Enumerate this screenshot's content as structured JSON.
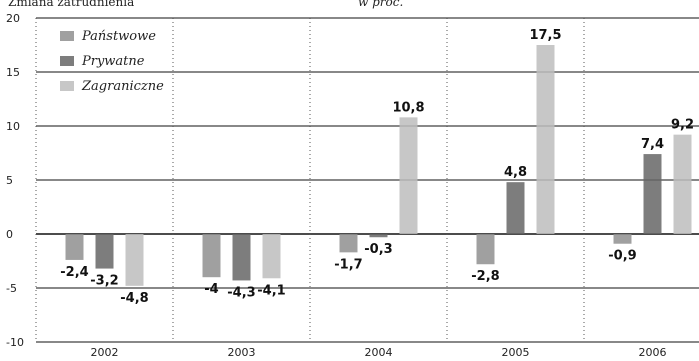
{
  "chart_data": {
    "type": "bar",
    "title": "Zmiana zatrudnienia",
    "subtitle": "w proc.",
    "categories": [
      "2002",
      "2003",
      "2004",
      "2005",
      "2006"
    ],
    "series": [
      {
        "name": "Państwowe",
        "color": "#8f8f8f",
        "values": [
          -2.4,
          -4.0,
          -1.7,
          -2.8,
          -0.9
        ]
      },
      {
        "name": "Prywatne",
        "color": "#666666",
        "values": [
          -3.2,
          -4.3,
          -0.3,
          4.8,
          7.4
        ]
      },
      {
        "name": "Zagraniczne",
        "color": "#bdbdbd",
        "values": [
          -4.8,
          -4.1,
          10.8,
          17.5,
          9.2
        ]
      }
    ],
    "yticks": [
      20,
      15,
      10,
      5,
      0,
      -5,
      -10
    ],
    "ylim": [
      -10,
      20
    ],
    "grid": true,
    "legend": "top-left"
  }
}
